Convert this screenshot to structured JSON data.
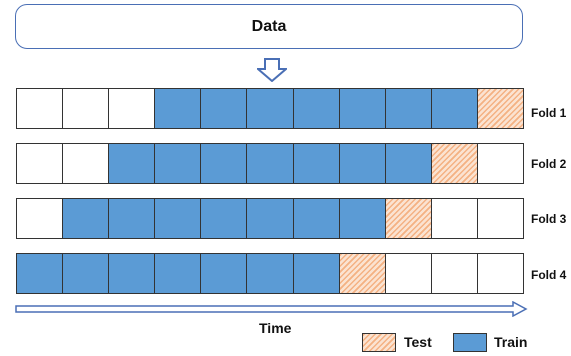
{
  "data_box": {
    "label": "Data"
  },
  "folds": [
    {
      "label": "Fold 1",
      "cells": [
        "unused",
        "unused",
        "unused",
        "train",
        "train",
        "train",
        "train",
        "train",
        "train",
        "train",
        "test"
      ]
    },
    {
      "label": "Fold 2",
      "cells": [
        "unused",
        "unused",
        "train",
        "train",
        "train",
        "train",
        "train",
        "train",
        "train",
        "test",
        "unused"
      ]
    },
    {
      "label": "Fold 3",
      "cells": [
        "unused",
        "train",
        "train",
        "train",
        "train",
        "train",
        "train",
        "train",
        "test",
        "unused",
        "unused"
      ]
    },
    {
      "label": "Fold 4",
      "cells": [
        "train",
        "train",
        "train",
        "train",
        "train",
        "train",
        "train",
        "test",
        "unused",
        "unused",
        "unused"
      ]
    }
  ],
  "time_axis": {
    "label": "Time"
  },
  "legend": {
    "test_label": "Test",
    "train_label": "Train"
  },
  "colors": {
    "train": "#5b9bd5",
    "test_hatch": "#f4b183",
    "border": "#4a6fb5"
  }
}
